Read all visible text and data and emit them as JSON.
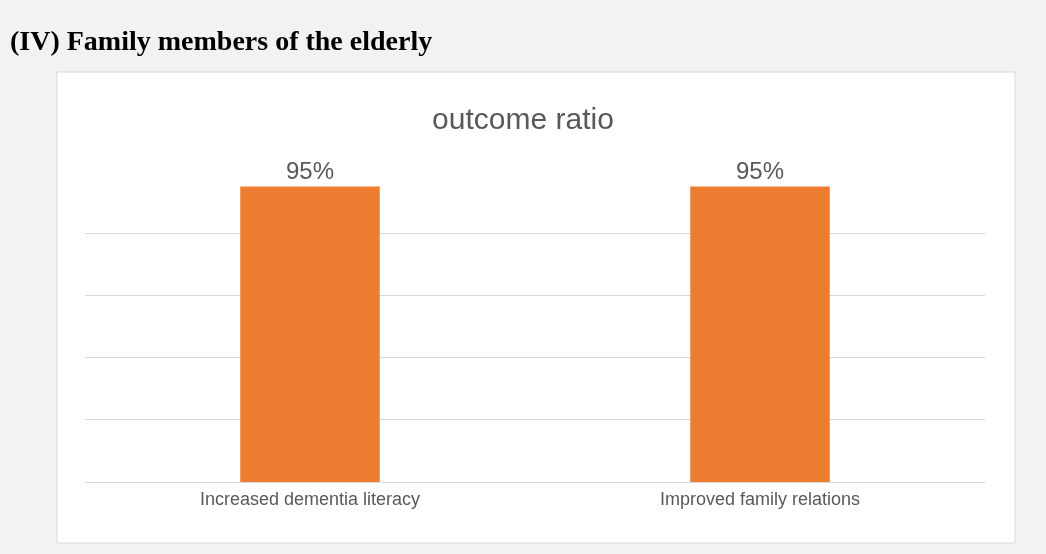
{
  "chart_data": {
    "type": "bar",
    "title": "outcome ratio",
    "annotations": [
      "(IV) Family members of the elderly"
    ],
    "categories": [
      "Increased dementia literacy",
      "Improved family relations"
    ],
    "values": [
      95,
      95
    ],
    "color": "#ed7d31",
    "value_labels": [
      "95%",
      "95%"
    ],
    "tick_labels": "x",
    "grid": "y"
  }
}
